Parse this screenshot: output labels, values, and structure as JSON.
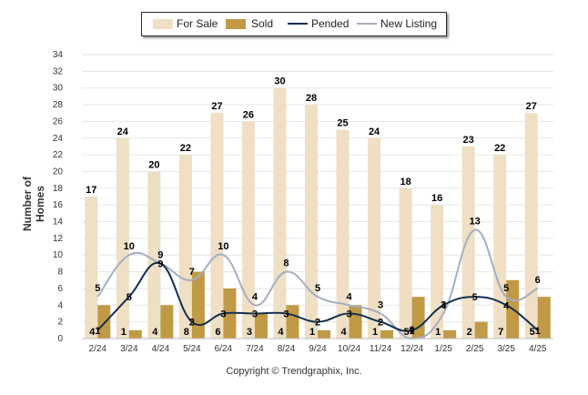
{
  "legend": {
    "for_sale": "For Sale",
    "sold": "Sold",
    "pended": "Pended",
    "new_listing": "New Listing"
  },
  "footer": {
    "copyright": "Copyright © Trendgraphix, Inc."
  },
  "colors": {
    "for_sale": "#efdfc4",
    "sold": "#c19a45",
    "pended": "#14304f",
    "new_listing": "#a5aec2",
    "grid": "#e6e6e6"
  },
  "chart_data": {
    "type": "bar",
    "categories": [
      "2/24",
      "3/24",
      "4/24",
      "5/24",
      "6/24",
      "7/24",
      "8/24",
      "9/24",
      "10/24",
      "11/24",
      "12/24",
      "1/25",
      "2/25",
      "3/25",
      "4/25"
    ],
    "ylabel": "Number of Homes",
    "ylim": [
      0,
      34
    ],
    "yticks": [
      0,
      2,
      4,
      6,
      8,
      10,
      12,
      14,
      16,
      18,
      20,
      22,
      24,
      26,
      28,
      30,
      32,
      34
    ],
    "grid": true,
    "legend_position": "top",
    "series": [
      {
        "name": "For Sale",
        "kind": "bar",
        "values": [
          17,
          24,
          20,
          22,
          27,
          26,
          30,
          28,
          25,
          24,
          18,
          16,
          23,
          22,
          27
        ]
      },
      {
        "name": "Sold",
        "kind": "bar",
        "values": [
          4,
          1,
          4,
          8,
          6,
          3,
          4,
          1,
          4,
          1,
          5,
          1,
          2,
          7,
          5
        ]
      },
      {
        "name": "Pended",
        "kind": "line",
        "values": [
          1,
          5,
          9,
          2,
          3,
          3,
          3,
          2,
          3,
          2,
          1,
          4,
          5,
          4,
          1
        ]
      },
      {
        "name": "New Listing",
        "kind": "line",
        "values": [
          5,
          10,
          9,
          7,
          10,
          4,
          8,
          5,
          4,
          3,
          0,
          3,
          13,
          5,
          6
        ]
      }
    ]
  }
}
